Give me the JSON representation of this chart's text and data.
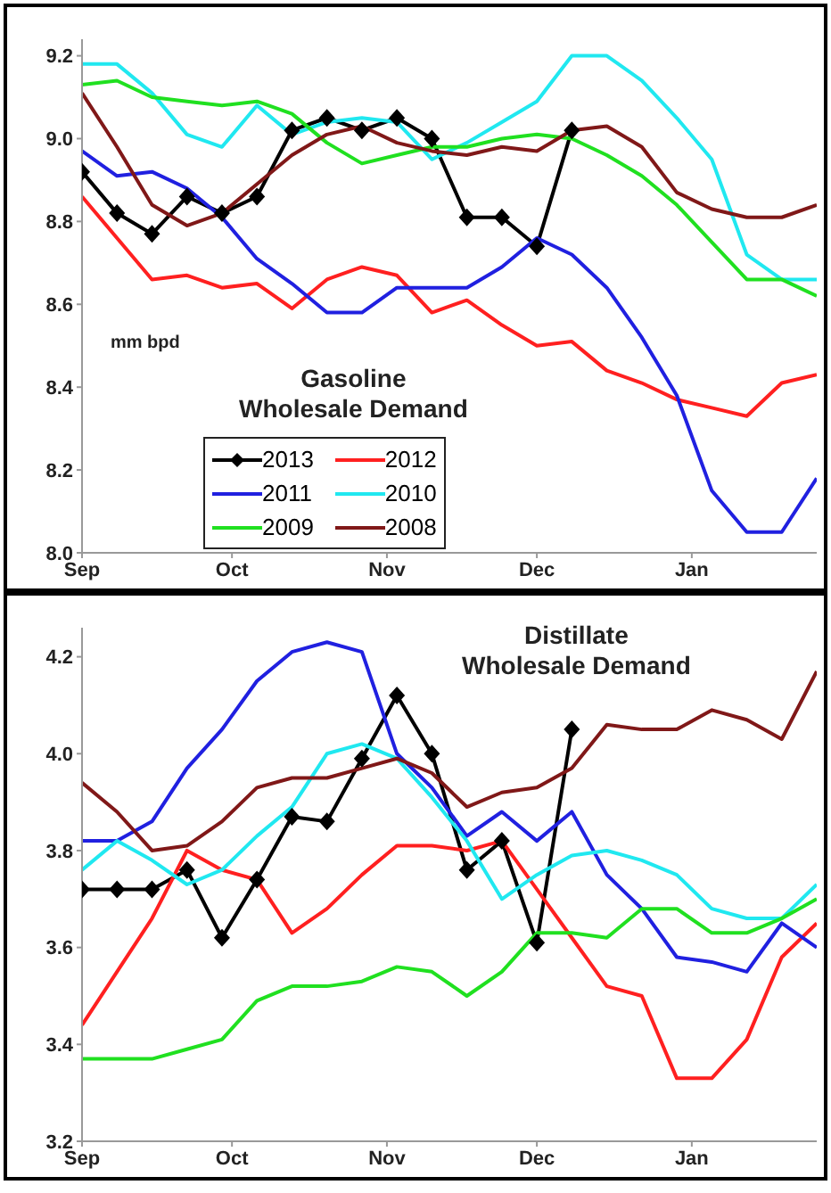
{
  "chart_data": [
    {
      "type": "line",
      "title": "Gasoline\nWholesale Demand",
      "ylabel": "mm bpd",
      "legend": "bottom",
      "marker": "none",
      "line_style": "solid",
      "x": [
        "2013-09-01",
        "2013-09-08",
        "2013-09-15",
        "2013-09-22",
        "2013-09-29",
        "2013-10-06",
        "2013-10-13",
        "2013-10-20",
        "2013-10-27",
        "2013-11-03",
        "2013-11-10",
        "2013-11-17",
        "2013-11-24",
        "2013-12-01",
        "2013-12-08",
        "2013-12-15",
        "2013-12-22",
        "2013-12-29",
        "2014-01-05",
        "2014-01-12",
        "2014-01-19",
        "2014-01-26"
      ],
      "xlim": [
        "2013-09-01",
        "2014-01-26"
      ],
      "xticks": [
        {
          "value": "2013-09-01",
          "label": "Sep"
        },
        {
          "value": "2013-10-01",
          "label": "Oct"
        },
        {
          "value": "2013-11-01",
          "label": "Nov"
        },
        {
          "value": "2013-12-01",
          "label": "Dec"
        },
        {
          "value": "2014-01-01",
          "label": "Jan"
        }
      ],
      "ylim": [
        8.0,
        9.24
      ],
      "yticks": [
        {
          "value": 8,
          "label": "8.0"
        },
        8.2,
        8.4,
        8.6,
        8.8,
        {
          "value": 9,
          "label": "9.0"
        },
        9.2
      ],
      "series": [
        {
          "name": "2013",
          "color": "#000000",
          "marker": "diamond",
          "values": [
            8.92,
            8.82,
            8.77,
            8.86,
            8.82,
            8.86,
            9.02,
            9.05,
            9.02,
            9.05,
            9.0,
            8.81,
            8.81,
            8.74,
            9.02,
            null,
            null,
            null,
            null,
            null,
            null,
            null
          ]
        },
        {
          "name": "2012",
          "color": "#ff2020",
          "values": [
            8.86,
            8.76,
            8.66,
            8.67,
            8.64,
            8.65,
            8.59,
            8.66,
            8.69,
            8.67,
            8.58,
            8.61,
            8.55,
            8.5,
            8.51,
            8.44,
            8.41,
            8.37,
            8.35,
            8.33,
            8.41,
            8.43
          ]
        },
        {
          "name": "2011",
          "color": "#2020e0",
          "values": [
            8.97,
            8.91,
            8.92,
            8.88,
            8.81,
            8.71,
            8.65,
            8.58,
            8.58,
            8.64,
            8.64,
            8.64,
            8.69,
            8.76,
            8.72,
            8.64,
            8.52,
            8.38,
            8.15,
            8.05,
            8.05,
            8.18
          ]
        },
        {
          "name": "2010",
          "color": "#20e8f0",
          "values": [
            9.18,
            9.18,
            9.11,
            9.01,
            8.98,
            9.08,
            9.01,
            9.04,
            9.05,
            9.04,
            8.95,
            8.99,
            9.04,
            9.09,
            9.2,
            9.2,
            9.14,
            9.05,
            8.95,
            8.72,
            8.66,
            8.66
          ]
        },
        {
          "name": "2009",
          "color": "#20e020",
          "values": [
            9.13,
            9.14,
            9.1,
            9.09,
            9.08,
            9.09,
            9.06,
            8.99,
            8.94,
            8.96,
            8.98,
            8.98,
            9.0,
            9.01,
            9.0,
            8.96,
            8.91,
            8.84,
            8.75,
            8.66,
            8.66,
            8.62
          ]
        },
        {
          "name": "2008",
          "color": "#801818",
          "values": [
            9.11,
            8.98,
            8.84,
            8.79,
            8.82,
            8.89,
            8.96,
            9.01,
            9.03,
            8.99,
            8.97,
            8.96,
            8.98,
            8.97,
            9.02,
            9.03,
            8.98,
            8.87,
            8.83,
            8.81,
            8.81,
            8.84
          ]
        }
      ]
    },
    {
      "type": "line",
      "title": "Distillate\nWholesale Demand",
      "marker": "none",
      "line_style": "solid",
      "x": [
        "2013-09-01",
        "2013-09-08",
        "2013-09-15",
        "2013-09-22",
        "2013-09-29",
        "2013-10-06",
        "2013-10-13",
        "2013-10-20",
        "2013-10-27",
        "2013-11-03",
        "2013-11-10",
        "2013-11-17",
        "2013-11-24",
        "2013-12-01",
        "2013-12-08",
        "2013-12-15",
        "2013-12-22",
        "2013-12-29",
        "2014-01-05",
        "2014-01-12",
        "2014-01-19",
        "2014-01-26"
      ],
      "xlim": [
        "2013-09-01",
        "2014-01-26"
      ],
      "xticks": [
        {
          "value": "2013-09-01",
          "label": "Sep"
        },
        {
          "value": "2013-10-01",
          "label": "Oct"
        },
        {
          "value": "2013-11-01",
          "label": "Nov"
        },
        {
          "value": "2013-12-01",
          "label": "Dec"
        },
        {
          "value": "2014-01-01",
          "label": "Jan"
        }
      ],
      "ylim": [
        3.2,
        4.26
      ],
      "yticks": [
        3.2,
        3.4,
        3.6,
        3.8,
        {
          "value": 4,
          "label": "4.0"
        },
        4.2
      ],
      "series": [
        {
          "color": "#000000",
          "marker": "diamond",
          "values": [
            3.72,
            3.72,
            3.72,
            3.76,
            3.62,
            3.74,
            3.87,
            3.86,
            3.99,
            4.12,
            4.0,
            3.76,
            3.82,
            3.61,
            4.05,
            null,
            null,
            null,
            null,
            null,
            null,
            null
          ]
        },
        {
          "color": "#ff2020",
          "values": [
            3.44,
            3.55,
            3.66,
            3.8,
            3.76,
            3.74,
            3.63,
            3.68,
            3.75,
            3.81,
            3.81,
            3.8,
            3.82,
            3.72,
            3.62,
            3.52,
            3.5,
            3.33,
            3.33,
            3.41,
            3.58,
            3.65
          ]
        },
        {
          "color": "#2020e0",
          "values": [
            3.82,
            3.82,
            3.86,
            3.97,
            4.05,
            4.15,
            4.21,
            4.23,
            4.21,
            4.0,
            3.93,
            3.83,
            3.88,
            3.82,
            3.88,
            3.75,
            3.68,
            3.58,
            3.57,
            3.55,
            3.65,
            3.6
          ]
        },
        {
          "color": "#20e8f0",
          "values": [
            3.76,
            3.82,
            3.78,
            3.73,
            3.76,
            3.83,
            3.89,
            4.0,
            4.02,
            3.99,
            3.91,
            3.82,
            3.7,
            3.75,
            3.79,
            3.8,
            3.78,
            3.75,
            3.68,
            3.66,
            3.66,
            3.73
          ]
        },
        {
          "color": "#20e020",
          "values": [
            3.37,
            3.37,
            3.37,
            3.39,
            3.41,
            3.49,
            3.52,
            3.52,
            3.53,
            3.56,
            3.55,
            3.5,
            3.55,
            3.63,
            3.63,
            3.62,
            3.68,
            3.68,
            3.63,
            3.63,
            3.66,
            3.7
          ]
        },
        {
          "color": "#801818",
          "values": [
            3.94,
            3.88,
            3.8,
            3.81,
            3.86,
            3.93,
            3.95,
            3.95,
            3.97,
            3.99,
            3.96,
            3.89,
            3.92,
            3.93,
            3.97,
            4.06,
            4.05,
            4.05,
            4.09,
            4.07,
            4.03,
            4.17
          ]
        }
      ]
    }
  ]
}
